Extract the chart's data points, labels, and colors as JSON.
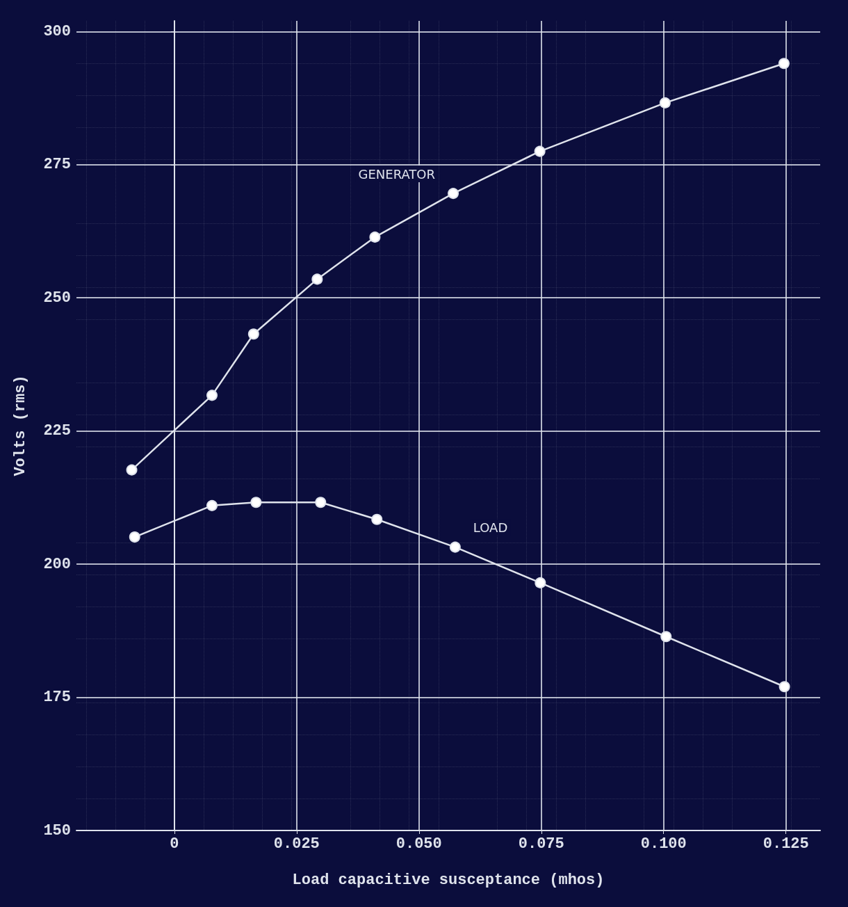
{
  "chart_data": {
    "type": "line",
    "xlabel": "Load capacitive susceptance (mhos)",
    "ylabel": "Volts (rms)",
    "xlim": [
      -0.02,
      0.132
    ],
    "ylim": [
      150,
      302
    ],
    "xticks": [
      0,
      {
        "value": 0.025,
        "label": "0.025"
      },
      {
        "value": 0.05,
        "label": "0.050"
      },
      {
        "value": 0.075,
        "label": "0.075"
      },
      {
        "value": 0.1,
        "label": "0.100"
      },
      {
        "value": 0.125,
        "label": "0.125"
      }
    ],
    "yticks": [
      150,
      175,
      200,
      225,
      250,
      275,
      300
    ],
    "series": [
      {
        "name": "GENERATOR",
        "color": "#dfe3ec",
        "x": [
          -0.0087,
          0.0077,
          0.0162,
          0.0292,
          0.041,
          0.057,
          0.0747,
          0.1003,
          0.1246
        ],
        "values": [
          217.7,
          231.7,
          243.2,
          253.5,
          261.4,
          269.6,
          277.5,
          286.6,
          294.0
        ]
      },
      {
        "name": "LOAD",
        "color": "#dfe3ec",
        "x": [
          -0.0081,
          0.0077,
          0.0167,
          0.0299,
          0.0414,
          0.0574,
          0.0748,
          0.1005,
          0.1247
        ],
        "values": [
          205.1,
          211.0,
          211.6,
          211.6,
          208.4,
          203.2,
          196.5,
          186.4,
          177.0
        ]
      }
    ],
    "grid": true,
    "legend": false,
    "marker": "circle",
    "line_style": "solid"
  }
}
